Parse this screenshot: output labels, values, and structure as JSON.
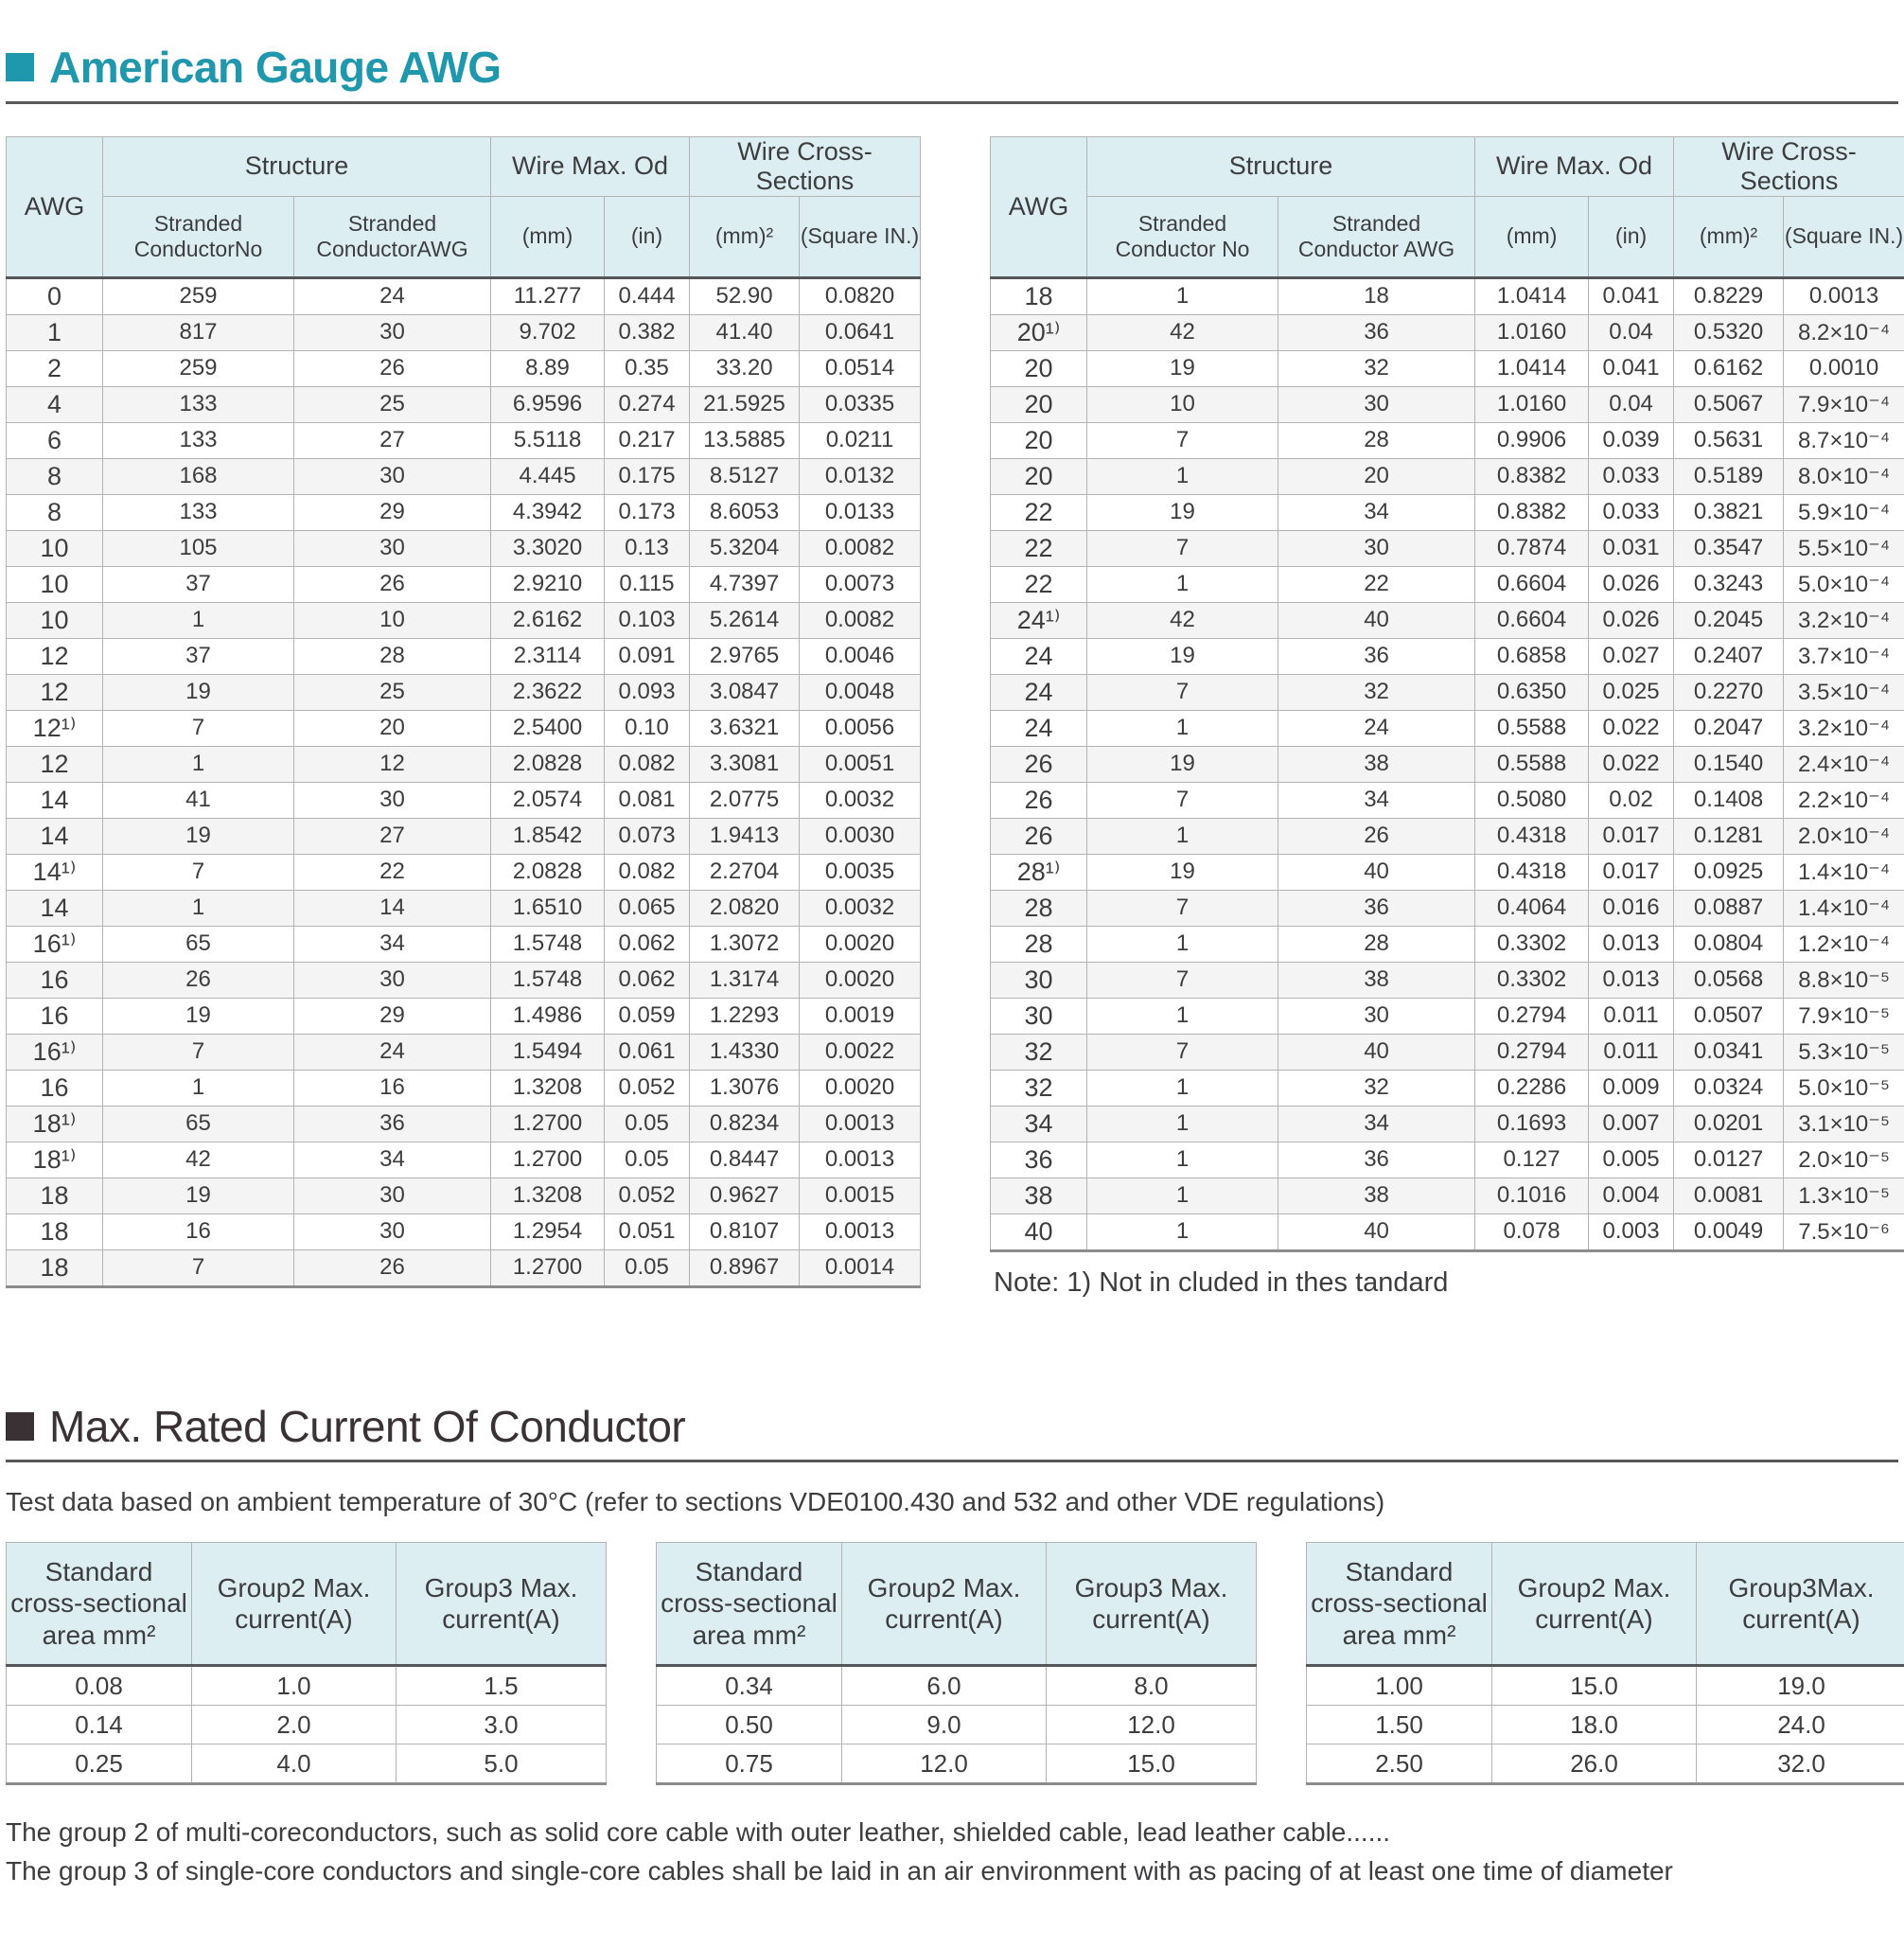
{
  "colors": {
    "accent_teal": "#1f97ad",
    "heading_dark": "#3a3134",
    "table_header_bg": "#dceef1"
  },
  "page": {
    "title1": "American Gauge AWG",
    "title2": "Max. Rated Current Of Conductor",
    "subtitle2": "Test data based on ambient temperature of 30°C (refer to sections VDE0100.430 and 532 and other VDE regulations)",
    "note": "Note: 1) Not in cluded in thes tandard",
    "footer1": "The group 2 of multi-coreconductors, such as solid core cable with outer leather, shielded cable, lead leather cable......",
    "footer2": "The group 3 of single-core conductors and single-core cables shall be laid in an air environment with as pacing of at least one time of diameter"
  },
  "awg": {
    "col_awg": "AWG",
    "group_structure": "Structure",
    "group_wire_max_od": "Wire Max. Od",
    "group_wire_cross": "Wire Cross-Sections",
    "left": {
      "sub": [
        "Stranded\nConductorNo",
        "Stranded\nConductorAWG",
        "(mm)",
        "(in)",
        "(mm)²",
        "(Square IN.)"
      ],
      "rows": [
        [
          "0",
          "259",
          "24",
          "11.277",
          "0.444",
          "52.90",
          "0.0820"
        ],
        [
          "1",
          "817",
          "30",
          "9.702",
          "0.382",
          "41.40",
          "0.0641"
        ],
        [
          "2",
          "259",
          "26",
          "8.89",
          "0.35",
          "33.20",
          "0.0514"
        ],
        [
          "4",
          "133",
          "25",
          "6.9596",
          "0.274",
          "21.5925",
          "0.0335"
        ],
        [
          "6",
          "133",
          "27",
          "5.5118",
          "0.217",
          "13.5885",
          "0.0211"
        ],
        [
          "8",
          "168",
          "30",
          "4.445",
          "0.175",
          "8.5127",
          "0.0132"
        ],
        [
          "8",
          "133",
          "29",
          "4.3942",
          "0.173",
          "8.6053",
          "0.0133"
        ],
        [
          "10",
          "105",
          "30",
          "3.3020",
          "0.13",
          "5.3204",
          "0.0082"
        ],
        [
          "10",
          "37",
          "26",
          "2.9210",
          "0.115",
          "4.7397",
          "0.0073"
        ],
        [
          "10",
          "1",
          "10",
          "2.6162",
          "0.103",
          "5.2614",
          "0.0082"
        ],
        [
          "12",
          "37",
          "28",
          "2.3114",
          "0.091",
          "2.9765",
          "0.0046"
        ],
        [
          "12",
          "19",
          "25",
          "2.3622",
          "0.093",
          "3.0847",
          "0.0048"
        ],
        [
          "12¹⁾",
          "7",
          "20",
          "2.5400",
          "0.10",
          "3.6321",
          "0.0056"
        ],
        [
          "12",
          "1",
          "12",
          "2.0828",
          "0.082",
          "3.3081",
          "0.0051"
        ],
        [
          "14",
          "41",
          "30",
          "2.0574",
          "0.081",
          "2.0775",
          "0.0032"
        ],
        [
          "14",
          "19",
          "27",
          "1.8542",
          "0.073",
          "1.9413",
          "0.0030"
        ],
        [
          "14¹⁾",
          "7",
          "22",
          "2.0828",
          "0.082",
          "2.2704",
          "0.0035"
        ],
        [
          "14",
          "1",
          "14",
          "1.6510",
          "0.065",
          "2.0820",
          "0.0032"
        ],
        [
          "16¹⁾",
          "65",
          "34",
          "1.5748",
          "0.062",
          "1.3072",
          "0.0020"
        ],
        [
          "16",
          "26",
          "30",
          "1.5748",
          "0.062",
          "1.3174",
          "0.0020"
        ],
        [
          "16",
          "19",
          "29",
          "1.4986",
          "0.059",
          "1.2293",
          "0.0019"
        ],
        [
          "16¹⁾",
          "7",
          "24",
          "1.5494",
          "0.061",
          "1.4330",
          "0.0022"
        ],
        [
          "16",
          "1",
          "16",
          "1.3208",
          "0.052",
          "1.3076",
          "0.0020"
        ],
        [
          "18¹⁾",
          "65",
          "36",
          "1.2700",
          "0.05",
          "0.8234",
          "0.0013"
        ],
        [
          "18¹⁾",
          "42",
          "34",
          "1.2700",
          "0.05",
          "0.8447",
          "0.0013"
        ],
        [
          "18",
          "19",
          "30",
          "1.3208",
          "0.052",
          "0.9627",
          "0.0015"
        ],
        [
          "18",
          "16",
          "30",
          "1.2954",
          "0.051",
          "0.8107",
          "0.0013"
        ],
        [
          "18",
          "7",
          "26",
          "1.2700",
          "0.05",
          "0.8967",
          "0.0014"
        ]
      ]
    },
    "right": {
      "sub": [
        "Stranded\nConductor No",
        "Stranded\nConductor AWG",
        "(mm)",
        "(in)",
        "(mm)²",
        "(Square IN.)"
      ],
      "rows": [
        [
          "18",
          "1",
          "18",
          "1.0414",
          "0.041",
          "0.8229",
          "0.0013"
        ],
        [
          "20¹⁾",
          "42",
          "36",
          "1.0160",
          "0.04",
          "0.5320",
          "8.2×10⁻⁴"
        ],
        [
          "20",
          "19",
          "32",
          "1.0414",
          "0.041",
          "0.6162",
          "0.0010"
        ],
        [
          "20",
          "10",
          "30",
          "1.0160",
          "0.04",
          "0.5067",
          "7.9×10⁻⁴"
        ],
        [
          "20",
          "7",
          "28",
          "0.9906",
          "0.039",
          "0.5631",
          "8.7×10⁻⁴"
        ],
        [
          "20",
          "1",
          "20",
          "0.8382",
          "0.033",
          "0.5189",
          "8.0×10⁻⁴"
        ],
        [
          "22",
          "19",
          "34",
          "0.8382",
          "0.033",
          "0.3821",
          "5.9×10⁻⁴"
        ],
        [
          "22",
          "7",
          "30",
          "0.7874",
          "0.031",
          "0.3547",
          "5.5×10⁻⁴"
        ],
        [
          "22",
          "1",
          "22",
          "0.6604",
          "0.026",
          "0.3243",
          "5.0×10⁻⁴"
        ],
        [
          "24¹⁾",
          "42",
          "40",
          "0.6604",
          "0.026",
          "0.2045",
          "3.2×10⁻⁴"
        ],
        [
          "24",
          "19",
          "36",
          "0.6858",
          "0.027",
          "0.2407",
          "3.7×10⁻⁴"
        ],
        [
          "24",
          "7",
          "32",
          "0.6350",
          "0.025",
          "0.2270",
          "3.5×10⁻⁴"
        ],
        [
          "24",
          "1",
          "24",
          "0.5588",
          "0.022",
          "0.2047",
          "3.2×10⁻⁴"
        ],
        [
          "26",
          "19",
          "38",
          "0.5588",
          "0.022",
          "0.1540",
          "2.4×10⁻⁴"
        ],
        [
          "26",
          "7",
          "34",
          "0.5080",
          "0.02",
          "0.1408",
          "2.2×10⁻⁴"
        ],
        [
          "26",
          "1",
          "26",
          "0.4318",
          "0.017",
          "0.1281",
          "2.0×10⁻⁴"
        ],
        [
          "28¹⁾",
          "19",
          "40",
          "0.4318",
          "0.017",
          "0.0925",
          "1.4×10⁻⁴"
        ],
        [
          "28",
          "7",
          "36",
          "0.4064",
          "0.016",
          "0.0887",
          "1.4×10⁻⁴"
        ],
        [
          "28",
          "1",
          "28",
          "0.3302",
          "0.013",
          "0.0804",
          "1.2×10⁻⁴"
        ],
        [
          "30",
          "7",
          "38",
          "0.3302",
          "0.013",
          "0.0568",
          "8.8×10⁻⁵"
        ],
        [
          "30",
          "1",
          "30",
          "0.2794",
          "0.011",
          "0.0507",
          "7.9×10⁻⁵"
        ],
        [
          "32",
          "7",
          "40",
          "0.2794",
          "0.011",
          "0.0341",
          "5.3×10⁻⁵"
        ],
        [
          "32",
          "1",
          "32",
          "0.2286",
          "0.009",
          "0.0324",
          "5.0×10⁻⁵"
        ],
        [
          "34",
          "1",
          "34",
          "0.1693",
          "0.007",
          "0.0201",
          "3.1×10⁻⁵"
        ],
        [
          "36",
          "1",
          "36",
          "0.127",
          "0.005",
          "0.0127",
          "2.0×10⁻⁵"
        ],
        [
          "38",
          "1",
          "38",
          "0.1016",
          "0.004",
          "0.0081",
          "1.3×10⁻⁵"
        ],
        [
          "40",
          "1",
          "40",
          "0.078",
          "0.003",
          "0.0049",
          "7.5×10⁻⁶"
        ]
      ]
    }
  },
  "current_tables": [
    {
      "headers": [
        "Standard\ncross-sectional\narea mm²",
        "Group2 Max.\ncurrent(A)",
        "Group3 Max.\ncurrent(A)"
      ],
      "rows": [
        [
          "0.08",
          "1.0",
          "1.5"
        ],
        [
          "0.14",
          "2.0",
          "3.0"
        ],
        [
          "0.25",
          "4.0",
          "5.0"
        ]
      ]
    },
    {
      "headers": [
        "Standard\ncross-sectional\narea mm²",
        "Group2 Max.\ncurrent(A)",
        "Group3 Max.\ncurrent(A)"
      ],
      "rows": [
        [
          "0.34",
          "6.0",
          "8.0"
        ],
        [
          "0.50",
          "9.0",
          "12.0"
        ],
        [
          "0.75",
          "12.0",
          "15.0"
        ]
      ]
    },
    {
      "headers": [
        "Standard\ncross-sectional\narea mm²",
        "Group2 Max.\ncurrent(A)",
        "Group3Max.\ncurrent(A)"
      ],
      "rows": [
        [
          "1.00",
          "15.0",
          "19.0"
        ],
        [
          "1.50",
          "18.0",
          "24.0"
        ],
        [
          "2.50",
          "26.0",
          "32.0"
        ]
      ]
    }
  ]
}
